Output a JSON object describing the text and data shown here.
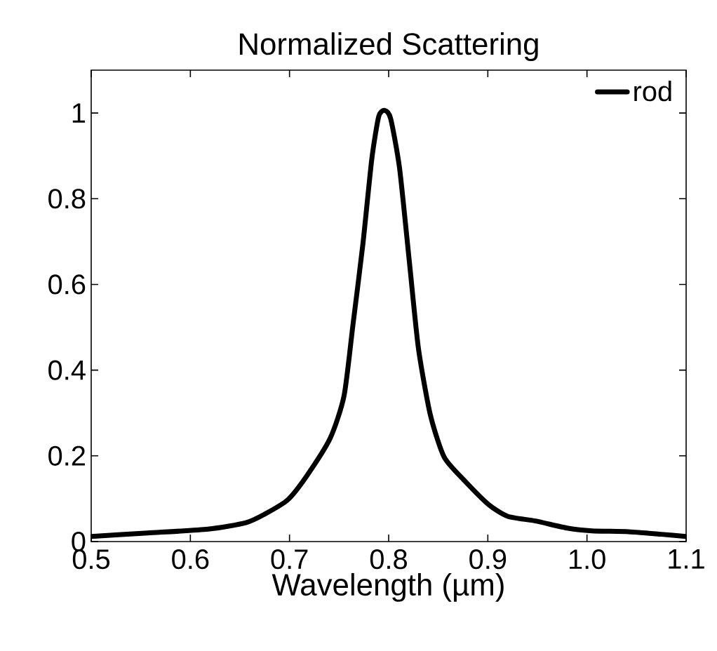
{
  "chart_data": {
    "type": "line",
    "title": "Normalized Scattering",
    "xlabel": "Wavelength (µm)",
    "xlim": [
      0.5,
      1.1
    ],
    "ylim": [
      0,
      1.1
    ],
    "xticks": [
      0.5,
      0.6,
      0.7,
      0.8,
      0.9,
      {
        "value": 1.0,
        "label": "1.0"
      },
      1.1
    ],
    "yticks": [
      0,
      0.2,
      0.4,
      0.6,
      0.8,
      1
    ],
    "legend": "top right",
    "grid": false,
    "marker": "none",
    "line_style": "solid",
    "series": [
      {
        "name": "rod",
        "color": "#000000",
        "x": [
          0.5,
          0.557,
          0.618,
          0.656,
          0.675,
          0.698,
          0.717,
          0.741,
          0.755,
          0.764,
          0.774,
          0.783,
          0.79,
          0.796,
          0.802,
          0.811,
          0.821,
          0.83,
          0.842,
          0.856,
          0.877,
          0.901,
          0.92,
          0.948,
          0.981,
          1.005,
          1.042,
          1.075,
          1.1
        ],
        "values": [
          0.012,
          0.02,
          0.029,
          0.044,
          0.064,
          0.097,
          0.152,
          0.241,
          0.34,
          0.506,
          0.694,
          0.893,
          0.992,
          1.006,
          0.987,
          0.871,
          0.65,
          0.451,
          0.296,
          0.197,
          0.141,
          0.086,
          0.059,
          0.048,
          0.031,
          0.025,
          0.023,
          0.017,
          0.012
        ]
      }
    ]
  }
}
